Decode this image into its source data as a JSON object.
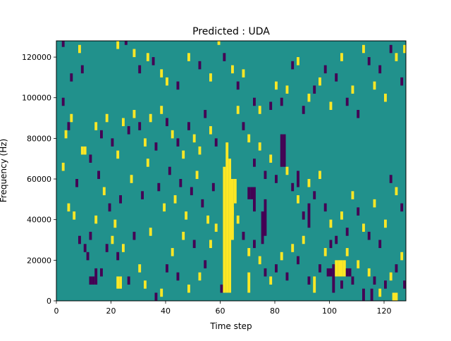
{
  "chart_data": {
    "type": "heatmap",
    "title": "Predicted : UDA",
    "xlabel": "Time step",
    "ylabel": "Frequency (Hz)",
    "xlim": [
      0,
      128
    ],
    "ylim": [
      0,
      128000
    ],
    "x_ticks": [
      0,
      20,
      40,
      60,
      80,
      100,
      120
    ],
    "x_tick_labels": [
      "0",
      "20",
      "40",
      "60",
      "80",
      "100",
      "120"
    ],
    "y_ticks": [
      0,
      20000,
      40000,
      60000,
      80000,
      100000,
      120000
    ],
    "y_tick_labels": [
      "0",
      "20000",
      "40000",
      "60000",
      "80000",
      "100000",
      "120000"
    ],
    "grid": false,
    "legend": "none",
    "colors": {
      "background_class": "#21918c",
      "high_class": "#fde725",
      "low_class": "#440154"
    },
    "segments": [
      {
        "t": 61,
        "f0": 4000,
        "f1": 66000,
        "class": "high"
      },
      {
        "t": 62,
        "f0": 4000,
        "f1": 78000,
        "class": "high"
      },
      {
        "t": 63,
        "f0": 4000,
        "f1": 70000,
        "class": "high"
      },
      {
        "t": 64,
        "f0": 30000,
        "f1": 60000,
        "class": "high"
      },
      {
        "t": 64,
        "f0": 42000,
        "f1": 46000,
        "class": "high"
      },
      {
        "t": 65,
        "f0": 48000,
        "f1": 60000,
        "class": "high"
      },
      {
        "t": 101,
        "f0": 4000,
        "f1": 18000,
        "class": "low"
      },
      {
        "t": 102,
        "f0": 12000,
        "f1": 20000,
        "class": "high"
      },
      {
        "t": 103,
        "f0": 12000,
        "f1": 20000,
        "class": "high"
      },
      {
        "t": 104,
        "f0": 12000,
        "f1": 20000,
        "class": "high"
      },
      {
        "t": 105,
        "f0": 12000,
        "f1": 20000,
        "class": "high"
      },
      {
        "t": 106,
        "f0": 12000,
        "f1": 16000,
        "class": "low"
      },
      {
        "t": 107,
        "f0": 12000,
        "f1": 16000,
        "class": "low"
      },
      {
        "t": 99,
        "f0": 12000,
        "f1": 16000,
        "class": "low"
      },
      {
        "t": 100,
        "f0": 12000,
        "f1": 16000,
        "class": "low"
      },
      {
        "t": 12,
        "f0": 8000,
        "f1": 12000,
        "class": "low"
      },
      {
        "t": 13,
        "f0": 8000,
        "f1": 12000,
        "class": "low"
      },
      {
        "t": 14,
        "f0": 8000,
        "f1": 16000,
        "class": "low"
      },
      {
        "t": 22,
        "f0": 6000,
        "f1": 12000,
        "class": "high"
      },
      {
        "t": 23,
        "f0": 6000,
        "f1": 12000,
        "class": "high"
      },
      {
        "t": 70,
        "f0": 50000,
        "f1": 56000,
        "class": "low"
      },
      {
        "t": 71,
        "f0": 50000,
        "f1": 56000,
        "class": "low"
      },
      {
        "t": 72,
        "f0": 44000,
        "f1": 56000,
        "class": "low"
      },
      {
        "t": 82,
        "f0": 66000,
        "f1": 82000,
        "class": "low"
      },
      {
        "t": 83,
        "f0": 66000,
        "f1": 82000,
        "class": "low"
      },
      {
        "t": 75,
        "f0": 28000,
        "f1": 44000,
        "class": "low"
      },
      {
        "t": 76,
        "f0": 32000,
        "f1": 50000,
        "class": "low"
      },
      {
        "t": 70,
        "f0": 4000,
        "f1": 14000,
        "class": "high"
      },
      {
        "t": 88,
        "f0": 56000,
        "f1": 64000,
        "class": "low"
      },
      {
        "t": 92,
        "f0": 36000,
        "f1": 48000,
        "class": "low"
      },
      {
        "t": 94,
        "f0": 4000,
        "f1": 12000,
        "class": "high"
      },
      {
        "t": 112,
        "f0": 0,
        "f1": 6000,
        "class": "low"
      },
      {
        "t": 115,
        "f0": 0,
        "f1": 6000,
        "class": "low"
      },
      {
        "t": 123,
        "f0": 0,
        "f1": 4000,
        "class": "high"
      },
      {
        "t": 124,
        "f0": 0,
        "f1": 4000,
        "class": "high"
      }
    ],
    "cells": [
      [
        2,
        125000,
        "low"
      ],
      [
        8,
        122000,
        "high"
      ],
      [
        5,
        108000,
        "low"
      ],
      [
        9,
        112000,
        "low"
      ],
      [
        2,
        96000,
        "low"
      ],
      [
        4,
        84000,
        "low"
      ],
      [
        5,
        88000,
        "high"
      ],
      [
        2,
        64000,
        "high"
      ],
      [
        4,
        44000,
        "high"
      ],
      [
        6,
        40000,
        "high"
      ],
      [
        8,
        28000,
        "low"
      ],
      [
        10,
        24000,
        "low"
      ],
      [
        11,
        20000,
        "low"
      ],
      [
        12,
        30000,
        "low"
      ],
      [
        14,
        38000,
        "high"
      ],
      [
        16,
        12000,
        "low"
      ],
      [
        18,
        24000,
        "low"
      ],
      [
        20,
        28000,
        "high"
      ],
      [
        22,
        20000,
        "low"
      ],
      [
        24,
        24000,
        "high"
      ],
      [
        26,
        8000,
        "low"
      ],
      [
        28,
        30000,
        "low"
      ],
      [
        30,
        14000,
        "high"
      ],
      [
        32,
        6000,
        "high"
      ],
      [
        34,
        32000,
        "high"
      ],
      [
        36,
        0,
        "low"
      ],
      [
        38,
        2000,
        "high"
      ],
      [
        40,
        14000,
        "low"
      ],
      [
        42,
        22000,
        "high"
      ],
      [
        44,
        10000,
        "low"
      ],
      [
        46,
        30000,
        "high"
      ],
      [
        48,
        4000,
        "high"
      ],
      [
        50,
        26000,
        "low"
      ],
      [
        52,
        10000,
        "high"
      ],
      [
        54,
        16000,
        "low"
      ],
      [
        56,
        26000,
        "high"
      ],
      [
        58,
        34000,
        "high"
      ],
      [
        60,
        4000,
        "low"
      ],
      [
        10,
        72000,
        "high"
      ],
      [
        12,
        68000,
        "low"
      ],
      [
        14,
        84000,
        "high"
      ],
      [
        16,
        80000,
        "low"
      ],
      [
        18,
        88000,
        "high"
      ],
      [
        20,
        76000,
        "low"
      ],
      [
        22,
        70000,
        "high"
      ],
      [
        24,
        86000,
        "high"
      ],
      [
        26,
        82000,
        "low"
      ],
      [
        28,
        90000,
        "high"
      ],
      [
        30,
        84000,
        "low"
      ],
      [
        32,
        76000,
        "high"
      ],
      [
        34,
        88000,
        "high"
      ],
      [
        36,
        74000,
        "low"
      ],
      [
        38,
        92000,
        "high"
      ],
      [
        40,
        86000,
        "low"
      ],
      [
        42,
        80000,
        "high"
      ],
      [
        44,
        76000,
        "low"
      ],
      [
        46,
        70000,
        "high"
      ],
      [
        48,
        84000,
        "low"
      ],
      [
        50,
        78000,
        "high"
      ],
      [
        52,
        72000,
        "high"
      ],
      [
        54,
        90000,
        "low"
      ],
      [
        56,
        82000,
        "high"
      ],
      [
        58,
        76000,
        "low"
      ],
      [
        22,
        124000,
        "high"
      ],
      [
        25,
        126000,
        "low"
      ],
      [
        28,
        120000,
        "high"
      ],
      [
        30,
        112000,
        "low"
      ],
      [
        33,
        118000,
        "high"
      ],
      [
        35,
        116000,
        "low"
      ],
      [
        38,
        110000,
        "high"
      ],
      [
        40,
        106000,
        "high"
      ],
      [
        44,
        104000,
        "low"
      ],
      [
        48,
        118000,
        "high"
      ],
      [
        52,
        114000,
        "low"
      ],
      [
        56,
        108000,
        "high"
      ],
      [
        59,
        126000,
        "high"
      ],
      [
        61,
        118000,
        "low"
      ],
      [
        64,
        112000,
        "high"
      ],
      [
        66,
        104000,
        "low"
      ],
      [
        68,
        110000,
        "high"
      ],
      [
        72,
        96000,
        "low"
      ],
      [
        74,
        92000,
        "high"
      ],
      [
        78,
        94000,
        "low"
      ],
      [
        80,
        104000,
        "high"
      ],
      [
        82,
        96000,
        "low"
      ],
      [
        84,
        102000,
        "high"
      ],
      [
        86,
        114000,
        "low"
      ],
      [
        88,
        116000,
        "high"
      ],
      [
        90,
        92000,
        "low"
      ],
      [
        92,
        98000,
        "high"
      ],
      [
        94,
        102000,
        "low"
      ],
      [
        96,
        106000,
        "high"
      ],
      [
        98,
        112000,
        "low"
      ],
      [
        100,
        94000,
        "high"
      ],
      [
        102,
        108000,
        "low"
      ],
      [
        104,
        118000,
        "high"
      ],
      [
        106,
        96000,
        "low"
      ],
      [
        108,
        102000,
        "high"
      ],
      [
        110,
        90000,
        "low"
      ],
      [
        112,
        122000,
        "high"
      ],
      [
        114,
        116000,
        "low"
      ],
      [
        116,
        104000,
        "high"
      ],
      [
        118,
        112000,
        "low"
      ],
      [
        120,
        98000,
        "high"
      ],
      [
        122,
        122000,
        "low"
      ],
      [
        124,
        118000,
        "high"
      ],
      [
        126,
        106000,
        "low"
      ],
      [
        127,
        122000,
        "high"
      ],
      [
        66,
        92000,
        "high"
      ],
      [
        68,
        84000,
        "low"
      ],
      [
        70,
        78000,
        "high"
      ],
      [
        72,
        66000,
        "low"
      ],
      [
        74,
        74000,
        "high"
      ],
      [
        76,
        60000,
        "low"
      ],
      [
        78,
        68000,
        "high"
      ],
      [
        80,
        58000,
        "low"
      ],
      [
        84,
        62000,
        "high"
      ],
      [
        86,
        54000,
        "low"
      ],
      [
        88,
        48000,
        "high"
      ],
      [
        90,
        40000,
        "low"
      ],
      [
        92,
        56000,
        "high"
      ],
      [
        94,
        50000,
        "low"
      ],
      [
        96,
        60000,
        "high"
      ],
      [
        98,
        44000,
        "low"
      ],
      [
        100,
        36000,
        "high"
      ],
      [
        102,
        28000,
        "low"
      ],
      [
        104,
        40000,
        "high"
      ],
      [
        106,
        32000,
        "low"
      ],
      [
        108,
        50000,
        "high"
      ],
      [
        110,
        42000,
        "low"
      ],
      [
        112,
        34000,
        "high"
      ],
      [
        114,
        30000,
        "low"
      ],
      [
        116,
        46000,
        "high"
      ],
      [
        118,
        26000,
        "low"
      ],
      [
        120,
        36000,
        "high"
      ],
      [
        122,
        58000,
        "low"
      ],
      [
        124,
        52000,
        "high"
      ],
      [
        126,
        44000,
        "low"
      ],
      [
        66,
        38000,
        "high"
      ],
      [
        68,
        30000,
        "low"
      ],
      [
        70,
        22000,
        "high"
      ],
      [
        72,
        26000,
        "low"
      ],
      [
        74,
        18000,
        "high"
      ],
      [
        76,
        12000,
        "low"
      ],
      [
        78,
        8000,
        "high"
      ],
      [
        80,
        14000,
        "low"
      ],
      [
        82,
        20000,
        "high"
      ],
      [
        84,
        10000,
        "low"
      ],
      [
        86,
        24000,
        "high"
      ],
      [
        88,
        18000,
        "low"
      ],
      [
        90,
        28000,
        "high"
      ],
      [
        92,
        8000,
        "low"
      ],
      [
        96,
        14000,
        "low"
      ],
      [
        98,
        22000,
        "high"
      ],
      [
        100,
        26000,
        "low"
      ],
      [
        104,
        6000,
        "low"
      ],
      [
        106,
        22000,
        "high"
      ],
      [
        108,
        8000,
        "low"
      ],
      [
        110,
        16000,
        "high"
      ],
      [
        114,
        12000,
        "high"
      ],
      [
        116,
        8000,
        "low"
      ],
      [
        118,
        2000,
        "high"
      ],
      [
        120,
        6000,
        "low"
      ],
      [
        122,
        10000,
        "high"
      ],
      [
        124,
        14000,
        "low"
      ],
      [
        126,
        20000,
        "high"
      ],
      [
        127,
        6000,
        "low"
      ],
      [
        3,
        80000,
        "high"
      ],
      [
        7,
        56000,
        "low"
      ],
      [
        9,
        72000,
        "high"
      ],
      [
        15,
        60000,
        "low"
      ],
      [
        17,
        52000,
        "high"
      ],
      [
        19,
        44000,
        "low"
      ],
      [
        21,
        36000,
        "high"
      ],
      [
        23,
        48000,
        "low"
      ],
      [
        27,
        58000,
        "high"
      ],
      [
        31,
        50000,
        "low"
      ],
      [
        33,
        66000,
        "high"
      ],
      [
        37,
        54000,
        "low"
      ],
      [
        39,
        44000,
        "high"
      ],
      [
        41,
        62000,
        "low"
      ],
      [
        43,
        48000,
        "high"
      ],
      [
        45,
        56000,
        "low"
      ],
      [
        47,
        40000,
        "high"
      ],
      [
        49,
        52000,
        "low"
      ],
      [
        51,
        60000,
        "high"
      ],
      [
        53,
        46000,
        "low"
      ],
      [
        55,
        38000,
        "high"
      ],
      [
        57,
        54000,
        "low"
      ]
    ]
  }
}
